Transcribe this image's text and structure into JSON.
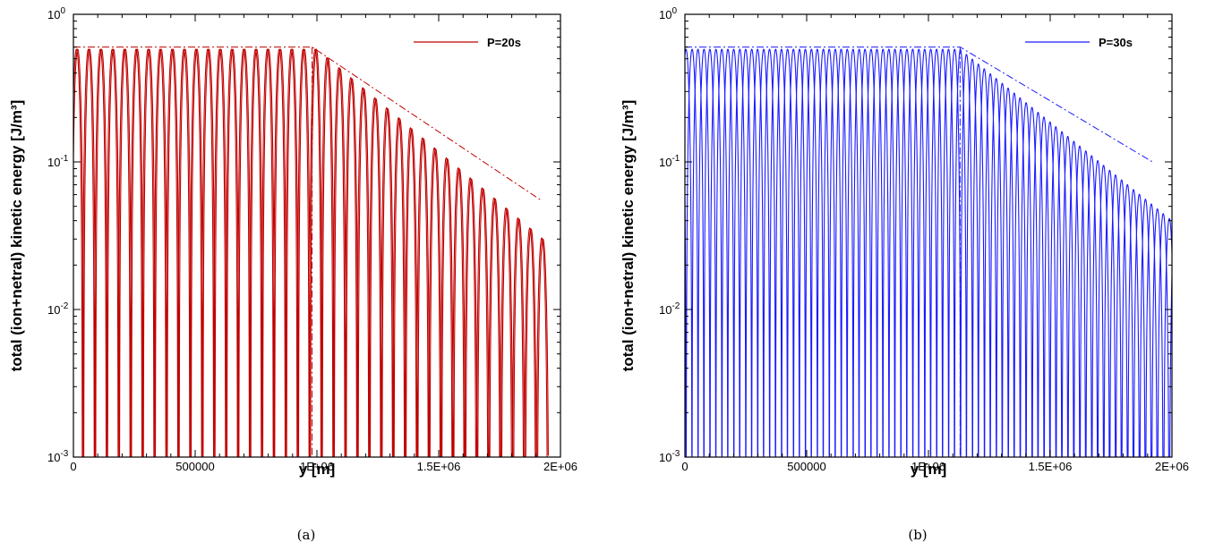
{
  "chart_data": [
    {
      "type": "line",
      "panel_caption": "(a)",
      "xlabel": "y [m]",
      "ylabel": "total (ion+netral) kinetic energy [J/m³]",
      "xlim": [
        0,
        2000000
      ],
      "ylim": [
        0.001,
        1
      ],
      "y_scale": "log",
      "x_ticks": [
        0,
        500000,
        1000000,
        1500000,
        2000000
      ],
      "x_tick_labels": [
        "0",
        "500000",
        "1E+06",
        "1.5E+06",
        "2E+06"
      ],
      "y_ticks": [
        0.001,
        0.01,
        0.1,
        1
      ],
      "y_tick_labels": [
        {
          "base": "10",
          "exp": "-3"
        },
        {
          "base": "10",
          "exp": "-2"
        },
        {
          "base": "10",
          "exp": "-1"
        },
        {
          "base": "10",
          "exp": "0"
        }
      ],
      "legend_position": "top-right",
      "color": "#c00000",
      "series": [
        {
          "name": "P=20s",
          "style": "solid",
          "segment_start": 0,
          "segment_end": 1950000,
          "plateau_end": 1000000,
          "peak_level": 0.58,
          "peak_at_end": 0.028,
          "half_period": 49000,
          "phase": -12000,
          "overlay_shift": 5000
        },
        {
          "name": "",
          "style": "dash-dot",
          "points": [
            [
              0,
              0.6
            ],
            [
              980000,
              0.6
            ],
            [
              1920000,
              0.055
            ]
          ],
          "vertical_at": 980000
        }
      ]
    },
    {
      "type": "line",
      "panel_caption": "(b)",
      "xlabel": "y [m]",
      "ylabel": "total (ion+netral) kinetic energy [J/m³]",
      "xlim": [
        0,
        2000000
      ],
      "ylim": [
        0.001,
        1
      ],
      "y_scale": "log",
      "x_ticks": [
        0,
        500000,
        1000000,
        1500000,
        2000000
      ],
      "x_tick_labels": [
        "0",
        "500000",
        "1E+06",
        "1.5E+06",
        "2E+06"
      ],
      "y_ticks": [
        0.001,
        0.01,
        0.1,
        1
      ],
      "y_tick_labels": [
        {
          "base": "10",
          "exp": "-3"
        },
        {
          "base": "10",
          "exp": "-2"
        },
        {
          "base": "10",
          "exp": "-1"
        },
        {
          "base": "10",
          "exp": "0"
        }
      ],
      "legend_position": "top-right",
      "color": "#1a1aff",
      "series": [
        {
          "name": "P=30s",
          "style": "solid",
          "segment_start": 0,
          "segment_end": 2000000,
          "plateau_end": 1130000,
          "peak_level": 0.58,
          "peak_at_end": 0.04,
          "half_period": 49000,
          "phase": 5000,
          "overlay_shift": 24000
        },
        {
          "name": "",
          "style": "dash-dot",
          "points": [
            [
              0,
              0.6
            ],
            [
              1130000,
              0.6
            ],
            [
              1920000,
              0.1
            ]
          ],
          "vertical_at": 1130000
        }
      ]
    }
  ]
}
